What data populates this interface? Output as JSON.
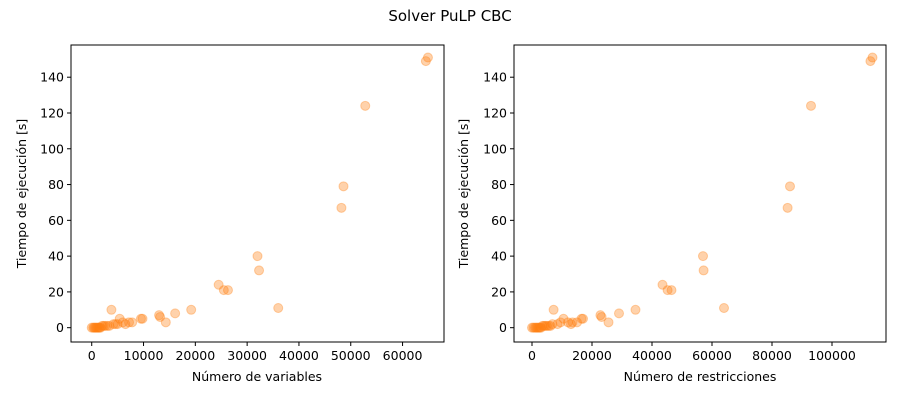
{
  "title": "Solver PuLP CBC",
  "colors": {
    "point": "#ff7f0e"
  },
  "chart_data": [
    {
      "type": "scatter",
      "xlabel": "Número de variables",
      "ylabel": "Tiempo de ejecución [s]",
      "xlim": [
        -4000,
        68000
      ],
      "ylim": [
        -8,
        158
      ],
      "xticks": [
        0,
        10000,
        20000,
        30000,
        40000,
        50000,
        60000
      ],
      "yticks": [
        0,
        20,
        40,
        60,
        80,
        100,
        120,
        140
      ],
      "x": [
        0,
        300,
        500,
        700,
        900,
        1100,
        1300,
        1500,
        1700,
        2000,
        2300,
        2600,
        3000,
        3400,
        3800,
        4200,
        4600,
        5000,
        5400,
        6000,
        6500,
        7200,
        7800,
        9500,
        9800,
        13000,
        13200,
        14300,
        16100,
        19200,
        24500,
        25500,
        26300,
        32000,
        32300,
        36000,
        48200,
        48600,
        52800,
        64500,
        64900
      ],
      "y": [
        0,
        0,
        0,
        0,
        0,
        0,
        0,
        0,
        0,
        1,
        1,
        1,
        1,
        1,
        10,
        2,
        2,
        2,
        5,
        3,
        2,
        3,
        3,
        5,
        5,
        7,
        6,
        3,
        8,
        10,
        24,
        21,
        21,
        40,
        32,
        11,
        67,
        79,
        124,
        149,
        151
      ]
    },
    {
      "type": "scatter",
      "xlabel": "Número de restricciones",
      "ylabel": "Tiempo de ejecución [s]",
      "xlim": [
        -6000,
        118000
      ],
      "ylim": [
        -8,
        158
      ],
      "xticks": [
        0,
        20000,
        40000,
        60000,
        80000,
        100000
      ],
      "yticks": [
        0,
        20,
        40,
        60,
        80,
        100,
        120,
        140
      ],
      "x": [
        0,
        500,
        1000,
        1400,
        1800,
        2200,
        2600,
        3000,
        3500,
        4000,
        4500,
        5000,
        5600,
        6200,
        6800,
        7200,
        8500,
        9500,
        10500,
        12000,
        13000,
        13500,
        15000,
        16500,
        17000,
        22800,
        23200,
        25500,
        29000,
        34500,
        43500,
        45200,
        46500,
        57000,
        57200,
        64000,
        85200,
        86000,
        93000,
        112800,
        113500
      ],
      "y": [
        0,
        0,
        0,
        0,
        0,
        0,
        0,
        0,
        1,
        1,
        1,
        1,
        1,
        1,
        2,
        10,
        2,
        3,
        5,
        3,
        2,
        3,
        3,
        5,
        5,
        7,
        6,
        3,
        8,
        10,
        24,
        21,
        21,
        40,
        32,
        11,
        67,
        79,
        124,
        149,
        151
      ]
    }
  ]
}
